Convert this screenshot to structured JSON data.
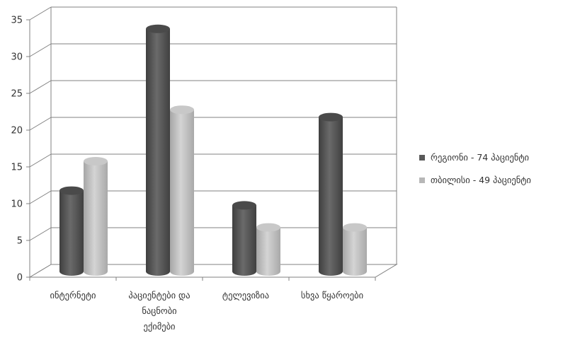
{
  "chart_data": {
    "type": "bar",
    "title": "",
    "xlabel": "",
    "ylabel": "",
    "ylim": [
      0,
      35
    ],
    "yticks": [
      0,
      5,
      10,
      15,
      20,
      25,
      30,
      35
    ],
    "grid": true,
    "legend_position": "right",
    "categories": [
      [
        "ინტერნეტი"
      ],
      [
        "პაციენტები და",
        "ნაცნობი",
        "ექიმები"
      ],
      [
        "ტელევიზია"
      ],
      [
        "სხვა წყაროები"
      ]
    ],
    "series": [
      {
        "name": "რეგიონი - 74 პაციენტი",
        "values": [
          11,
          33,
          9,
          21
        ],
        "color": "#595959"
      },
      {
        "name": "თბილისი - 49 პაციენტი",
        "values": [
          15,
          22,
          6,
          6
        ],
        "color": "#b7b7b7"
      }
    ]
  }
}
